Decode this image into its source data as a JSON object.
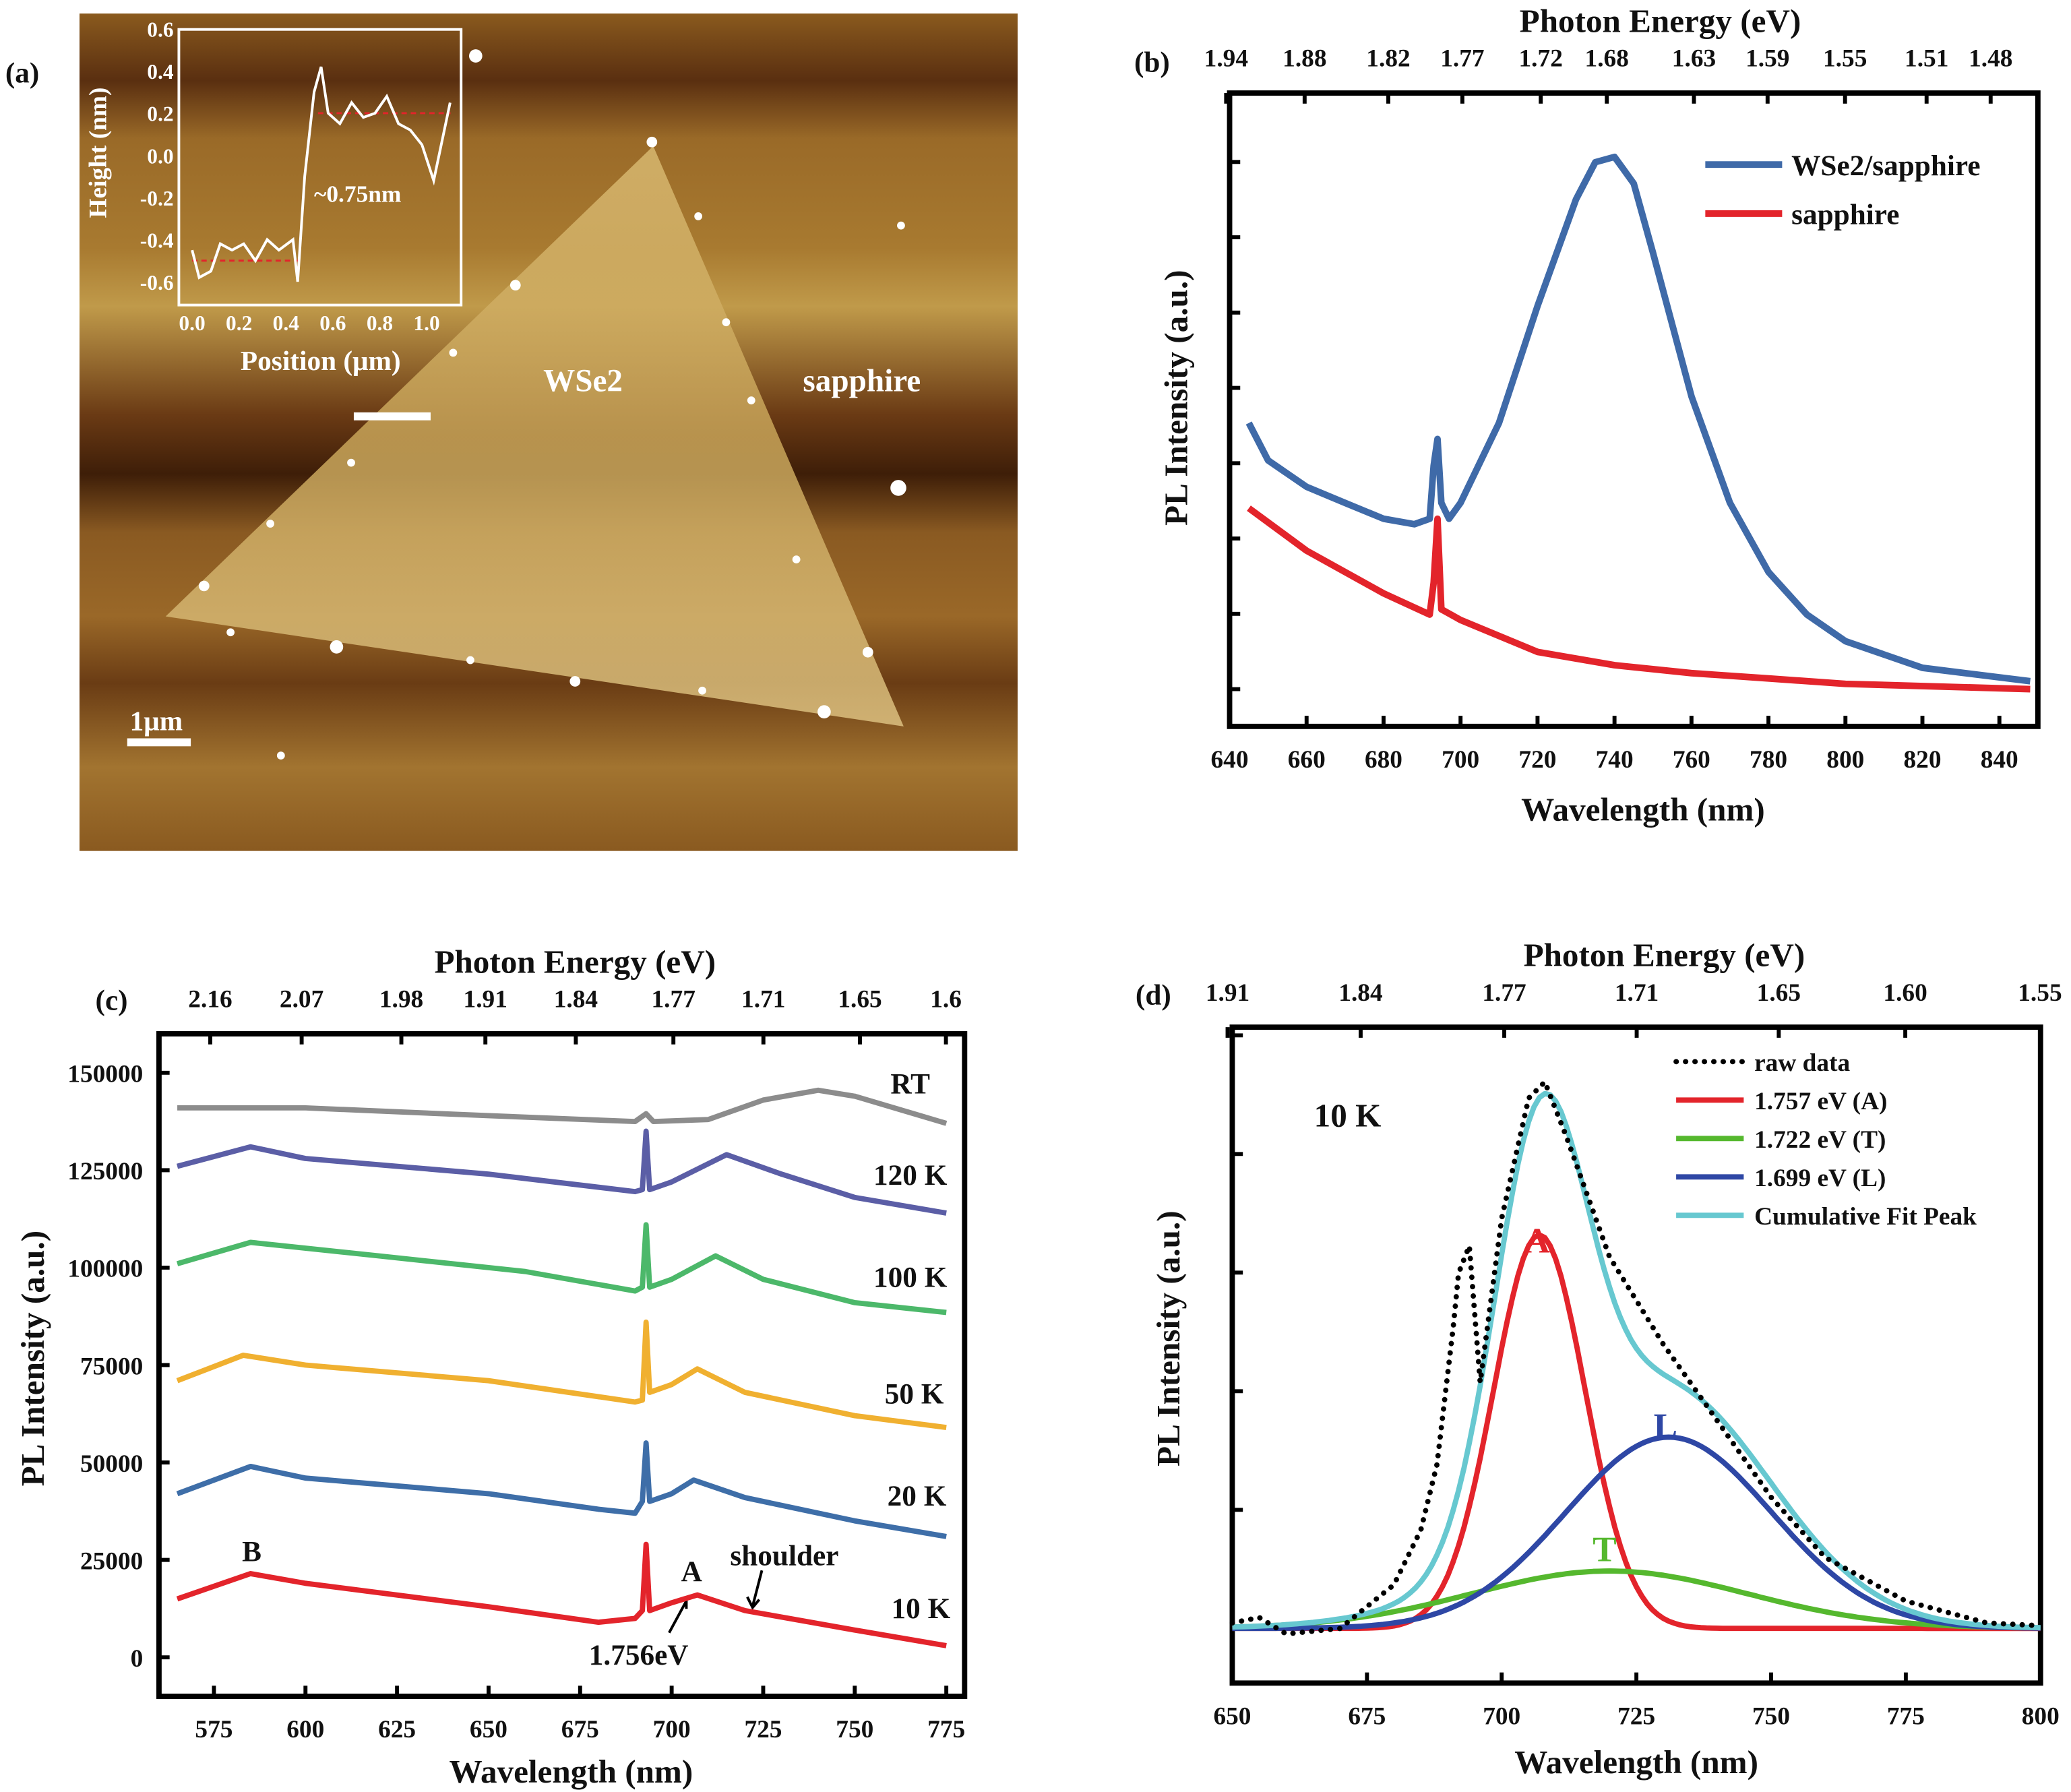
{
  "panel_a": {
    "label": "(a)",
    "text_wse2": "WSe2",
    "text_sapphire": "sapphire",
    "scale_bar": "1μm",
    "inset": {
      "xlabel": "Position (μm)",
      "ylabel": "Height (nm)",
      "annotation": "~0.75nm",
      "xticks": [
        "0.0",
        "0.2",
        "0.4",
        "0.6",
        "0.8",
        "1.0"
      ],
      "yticks": [
        "0.6",
        "0.4",
        "0.2",
        "0.0",
        "-0.2",
        "-0.4",
        "-0.6"
      ],
      "profile": [
        [
          0.0,
          -0.45
        ],
        [
          0.03,
          -0.58
        ],
        [
          0.08,
          -0.55
        ],
        [
          0.12,
          -0.42
        ],
        [
          0.17,
          -0.45
        ],
        [
          0.22,
          -0.42
        ],
        [
          0.27,
          -0.5
        ],
        [
          0.32,
          -0.4
        ],
        [
          0.37,
          -0.45
        ],
        [
          0.43,
          -0.4
        ],
        [
          0.45,
          -0.6
        ],
        [
          0.48,
          -0.1
        ],
        [
          0.52,
          0.3
        ],
        [
          0.55,
          0.42
        ],
        [
          0.58,
          0.2
        ],
        [
          0.63,
          0.15
        ],
        [
          0.68,
          0.25
        ],
        [
          0.73,
          0.18
        ],
        [
          0.78,
          0.2
        ],
        [
          0.83,
          0.28
        ],
        [
          0.88,
          0.15
        ],
        [
          0.93,
          0.12
        ],
        [
          0.98,
          0.05
        ],
        [
          1.03,
          -0.12
        ],
        [
          1.1,
          0.25
        ]
      ],
      "ref_levels": [
        -0.5,
        0.2
      ],
      "line_color": "#ffffff",
      "ref_color": "#e3242b"
    }
  },
  "chart_data": [
    {
      "panel": "(b)",
      "type": "line",
      "xlabel": "Wavelength (nm)",
      "ylabel": "PL Intensity (a.u.)",
      "top_xlabel": "Photon Energy (eV)",
      "xlim": [
        640,
        850
      ],
      "xticks": [
        "640",
        "660",
        "680",
        "700",
        "720",
        "740",
        "760",
        "780",
        "800",
        "820",
        "840"
      ],
      "top_xticks": [
        "1.94",
        "1.88",
        "1.82",
        "1.77",
        "1.72",
        "1.68",
        "1.63",
        "1.59",
        "1.55",
        "1.51",
        "1.48"
      ],
      "legend_position": "top-right",
      "series": [
        {
          "name": "WSe2/sapphire",
          "color": "#3f6aa8",
          "points": [
            [
              645,
              0.5
            ],
            [
              650,
              0.43
            ],
            [
              660,
              0.38
            ],
            [
              670,
              0.35
            ],
            [
              680,
              0.32
            ],
            [
              688,
              0.31
            ],
            [
              692,
              0.32
            ],
            [
              693,
              0.42
            ],
            [
              694,
              0.47
            ],
            [
              695,
              0.35
            ],
            [
              697,
              0.32
            ],
            [
              700,
              0.35
            ],
            [
              710,
              0.5
            ],
            [
              720,
              0.72
            ],
            [
              730,
              0.92
            ],
            [
              735,
              0.99
            ],
            [
              740,
              1.0
            ],
            [
              745,
              0.95
            ],
            [
              750,
              0.82
            ],
            [
              760,
              0.55
            ],
            [
              770,
              0.35
            ],
            [
              780,
              0.22
            ],
            [
              790,
              0.14
            ],
            [
              800,
              0.09
            ],
            [
              820,
              0.04
            ],
            [
              848,
              0.015
            ]
          ]
        },
        {
          "name": "sapphire",
          "color": "#e3242b",
          "points": [
            [
              645,
              0.34
            ],
            [
              660,
              0.26
            ],
            [
              680,
              0.18
            ],
            [
              692,
              0.14
            ],
            [
              693,
              0.2
            ],
            [
              694,
              0.32
            ],
            [
              695,
              0.15
            ],
            [
              700,
              0.13
            ],
            [
              720,
              0.07
            ],
            [
              740,
              0.045
            ],
            [
              760,
              0.03
            ],
            [
              780,
              0.02
            ],
            [
              800,
              0.01
            ],
            [
              848,
              0.0
            ]
          ]
        }
      ]
    },
    {
      "panel": "(c)",
      "type": "line",
      "xlabel": "Wavelength (nm)",
      "ylabel": "PL Intensity (a.u.)",
      "top_xlabel": "Photon Energy (eV)",
      "xlim": [
        560,
        780
      ],
      "ylim": [
        -10000,
        160000
      ],
      "xticks": [
        "575",
        "600",
        "625",
        "650",
        "675",
        "700",
        "725",
        "750",
        "775"
      ],
      "yticks": [
        "0",
        "25000",
        "50000",
        "75000",
        "100000",
        "125000",
        "150000"
      ],
      "top_xticks": [
        "2.16",
        "2.07",
        "1.98",
        "1.91",
        "1.84",
        "1.77",
        "1.71",
        "1.65",
        "1.6"
      ],
      "annotations": {
        "B": "B",
        "A": "A",
        "shoulder": "shoulder",
        "energy": "1.756eV"
      },
      "series": [
        {
          "name": "RT",
          "color": "#8c8c8c",
          "points": [
            [
              565,
              141000
            ],
            [
              600,
              141000
            ],
            [
              650,
              139000
            ],
            [
              690,
              137500
            ],
            [
              693,
              139500
            ],
            [
              695,
              137500
            ],
            [
              710,
              138000
            ],
            [
              725,
              143000
            ],
            [
              740,
              145500
            ],
            [
              750,
              144000
            ],
            [
              775,
              137000
            ]
          ]
        },
        {
          "name": "120 K",
          "color": "#5b5ea6",
          "points": [
            [
              565,
              126000
            ],
            [
              585,
              131000
            ],
            [
              600,
              128000
            ],
            [
              650,
              124000
            ],
            [
              690,
              119500
            ],
            [
              692,
              120000
            ],
            [
              693,
              135000
            ],
            [
              694,
              120000
            ],
            [
              700,
              122000
            ],
            [
              715,
              129000
            ],
            [
              730,
              124000
            ],
            [
              750,
              118000
            ],
            [
              775,
              114000
            ]
          ]
        },
        {
          "name": "100 K",
          "color": "#4cb86a",
          "points": [
            [
              565,
              101000
            ],
            [
              585,
              106500
            ],
            [
              620,
              103000
            ],
            [
              660,
              99000
            ],
            [
              690,
              94000
            ],
            [
              692,
              95000
            ],
            [
              693,
              111000
            ],
            [
              694,
              95000
            ],
            [
              700,
              97000
            ],
            [
              712,
              103000
            ],
            [
              725,
              97000
            ],
            [
              750,
              91000
            ],
            [
              775,
              88500
            ]
          ]
        },
        {
          "name": "50 K",
          "color": "#f0b030",
          "points": [
            [
              565,
              71000
            ],
            [
              583,
              77500
            ],
            [
              600,
              75000
            ],
            [
              650,
              71000
            ],
            [
              690,
              65500
            ],
            [
              692,
              66000
            ],
            [
              693,
              86000
            ],
            [
              694,
              68000
            ],
            [
              700,
              70000
            ],
            [
              707,
              74000
            ],
            [
              720,
              68000
            ],
            [
              750,
              62000
            ],
            [
              775,
              59000
            ]
          ]
        },
        {
          "name": "20 K",
          "color": "#3e6ea8",
          "points": [
            [
              565,
              42000
            ],
            [
              585,
              49000
            ],
            [
              600,
              46000
            ],
            [
              650,
              42000
            ],
            [
              680,
              38000
            ],
            [
              690,
              37000
            ],
            [
              692,
              40000
            ],
            [
              693,
              55000
            ],
            [
              694,
              40000
            ],
            [
              700,
              42000
            ],
            [
              706,
              45500
            ],
            [
              720,
              41000
            ],
            [
              750,
              35000
            ],
            [
              775,
              31000
            ]
          ]
        },
        {
          "name": "10 K",
          "color": "#e3242b",
          "points": [
            [
              565,
              15000
            ],
            [
              585,
              21500
            ],
            [
              600,
              19000
            ],
            [
              650,
              13000
            ],
            [
              680,
              9000
            ],
            [
              690,
              10000
            ],
            [
              692,
              12000
            ],
            [
              693,
              29000
            ],
            [
              694,
              12000
            ],
            [
              700,
              14000
            ],
            [
              707,
              16000
            ],
            [
              720,
              12000
            ],
            [
              750,
              7000
            ],
            [
              775,
              3000
            ]
          ]
        }
      ]
    },
    {
      "panel": "(d)",
      "type": "line",
      "xlabel": "Wavelength (nm)",
      "ylabel": "PL Intensity (a.u.)",
      "top_xlabel": "Photon Energy (eV)",
      "xlim": [
        650,
        800
      ],
      "xticks": [
        "650",
        "675",
        "700",
        "725",
        "750",
        "775",
        "800"
      ],
      "top_xticks": [
        "1.91",
        "1.84",
        "1.77",
        "1.71",
        "1.65",
        "1.60",
        "1.55"
      ],
      "temperature": "10 K",
      "legend_position": "top-right",
      "raw": {
        "name": "raw data",
        "color": "#000000",
        "points": [
          [
            650,
            0.01
          ],
          [
            655,
            0.02
          ],
          [
            660,
            -0.01
          ],
          [
            670,
            0.0
          ],
          [
            680,
            0.08
          ],
          [
            685,
            0.18
          ],
          [
            688,
            0.3
          ],
          [
            691,
            0.55
          ],
          [
            692,
            0.65
          ],
          [
            694,
            0.7
          ],
          [
            696,
            0.45
          ],
          [
            698,
            0.6
          ],
          [
            700,
            0.75
          ],
          [
            705,
            0.97
          ],
          [
            708,
            1.0
          ],
          [
            712,
            0.9
          ],
          [
            720,
            0.68
          ],
          [
            730,
            0.52
          ],
          [
            740,
            0.38
          ],
          [
            750,
            0.24
          ],
          [
            760,
            0.13
          ],
          [
            775,
            0.05
          ],
          [
            790,
            0.01
          ],
          [
            800,
            0.005
          ]
        ]
      },
      "components": [
        {
          "name": "1.757 eV (A)",
          "short": "A",
          "color": "#e3242b",
          "center_nm": 707,
          "amplitude": 0.72,
          "fwhm_nm": 20
        },
        {
          "name": "1.722 eV (T)",
          "short": "T",
          "color": "#55b82e",
          "center_nm": 720,
          "amplitude": 0.105,
          "fwhm_nm": 60
        },
        {
          "name": "1.699 eV (L)",
          "short": "L",
          "color": "#2e47a5",
          "center_nm": 731,
          "amplitude": 0.35,
          "fwhm_nm": 45
        }
      ],
      "cumulative": {
        "name": "Cumulative Fit Peak",
        "color": "#67c8d0"
      }
    }
  ]
}
